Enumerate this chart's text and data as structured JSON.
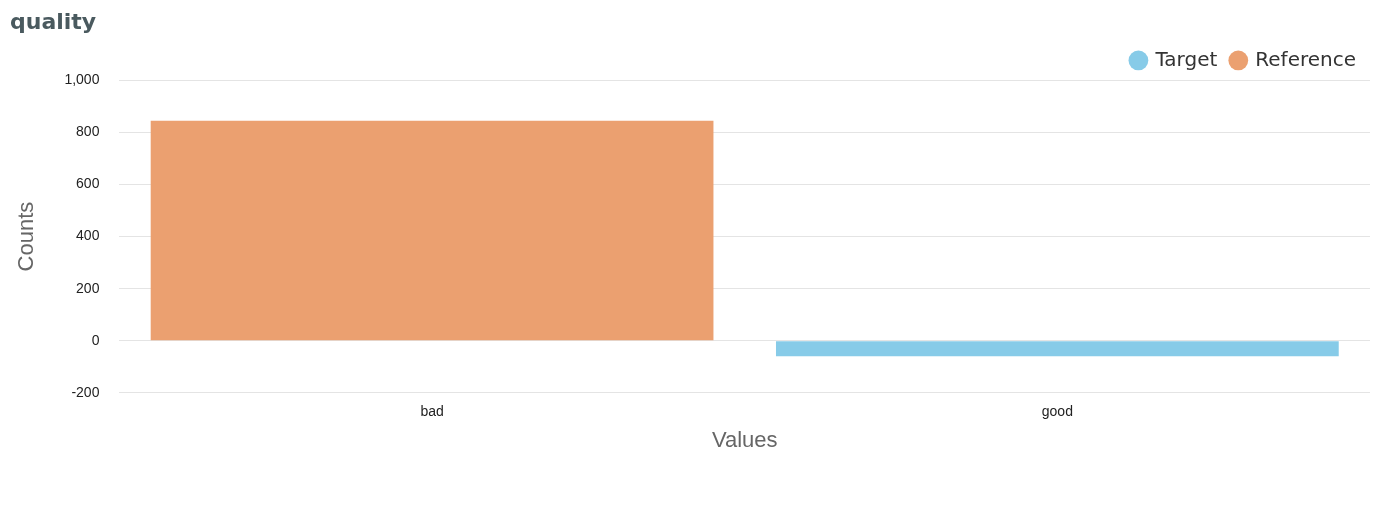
{
  "chart_data": {
    "type": "bar",
    "title": "quality",
    "xlabel": "Values",
    "ylabel": "Counts",
    "categories": [
      "bad",
      "good"
    ],
    "series": [
      {
        "name": "Target",
        "color": "#87cbe8",
        "values": [
          null,
          -60
        ]
      },
      {
        "name": "Reference",
        "color": "#eba070",
        "values": [
          845,
          null
        ]
      }
    ],
    "stacked": true,
    "ylim": [
      -200,
      1000
    ],
    "yticks": [
      -200,
      0,
      200,
      400,
      600,
      800,
      {
        "value": 1000,
        "label": "1,000"
      }
    ],
    "grid": "y",
    "legend": "top right"
  }
}
